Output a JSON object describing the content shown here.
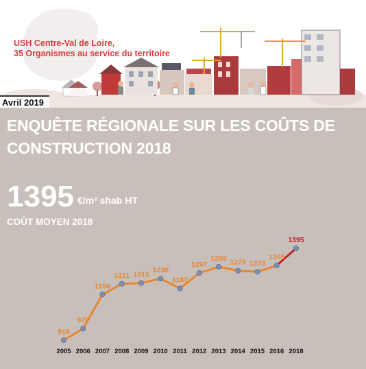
{
  "header": {
    "org_line1": "USH Centre-Val de Loire,",
    "org_line2": "35 Organismes au service du territoire",
    "date": "Avril 2019"
  },
  "headline": {
    "title_line1": "ENQUÊTE RÉGIONALE SUR LES COÛTS DE",
    "title_line2": "CONSTRUCTION 2018",
    "value": "1395",
    "unit": "€/m² shab HT",
    "subtitle": "COÛT MOYEN 2018"
  },
  "colors": {
    "panel": "#c8bfbb",
    "line": "#e8862f",
    "highlight": "#c0202a",
    "marker": "#7f8fb0",
    "header_text": "#d63a3a"
  },
  "chart_data": {
    "type": "line",
    "x": [
      "2005",
      "2006",
      "2007",
      "2008",
      "2009",
      "2010",
      "2011",
      "2012",
      "2013",
      "2014",
      "2015",
      "2016",
      "2018"
    ],
    "series": [
      {
        "values": [
          919,
          979,
          1156,
          1211,
          1215,
          1238,
          1187,
          1267,
          1299,
          1279,
          1273,
          1306,
          1395
        ]
      }
    ],
    "highlight_last_segment": true,
    "grid": false
  }
}
